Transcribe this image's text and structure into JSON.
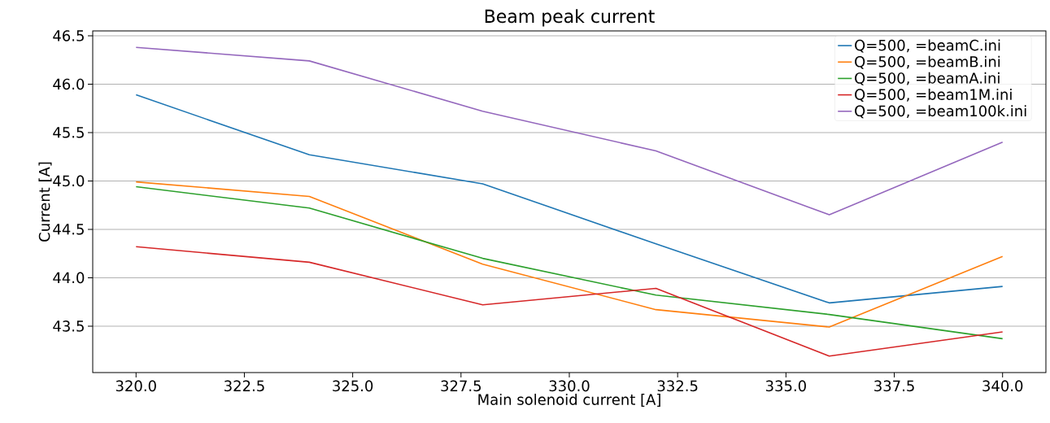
{
  "chart_data": {
    "type": "line",
    "title": "Beam peak current",
    "xlabel": "Main solenoid current [A]",
    "ylabel": "Current [A]",
    "x": [
      320,
      324,
      328,
      332,
      336,
      340
    ],
    "series": [
      {
        "name": "Q=500, =beamC.ini",
        "color": "#1f77b4",
        "values": [
          45.89,
          45.27,
          44.97,
          44.35,
          43.74,
          43.91
        ]
      },
      {
        "name": "Q=500, =beamB.ini",
        "color": "#ff7f0e",
        "values": [
          44.99,
          44.84,
          44.14,
          43.67,
          43.49,
          44.22
        ]
      },
      {
        "name": "Q=500, =beamA.ini",
        "color": "#2ca02c",
        "values": [
          44.94,
          44.72,
          44.2,
          43.82,
          43.62,
          43.37
        ]
      },
      {
        "name": "Q=500, =beam1M.ini",
        "color": "#d62728",
        "values": [
          44.32,
          44.16,
          43.72,
          43.89,
          43.19,
          43.44
        ]
      },
      {
        "name": "Q=500, =beam100k.ini",
        "color": "#9467bd",
        "values": [
          46.38,
          46.24,
          45.72,
          45.31,
          44.65,
          45.4
        ]
      }
    ],
    "xlim": [
      319,
      341
    ],
    "ylim": [
      43.02,
      46.55
    ],
    "xticks": [
      {
        "value": 320,
        "label": "320.0"
      },
      {
        "value": 322.5,
        "label": "322.5"
      },
      {
        "value": 325,
        "label": "325.0"
      },
      {
        "value": 327.5,
        "label": "327.5"
      },
      {
        "value": 330,
        "label": "330.0"
      },
      {
        "value": 332.5,
        "label": "332.5"
      },
      {
        "value": 335,
        "label": "335.0"
      },
      {
        "value": 337.5,
        "label": "337.5"
      },
      {
        "value": 340,
        "label": "340.0"
      }
    ],
    "yticks": [
      {
        "value": 43.5,
        "label": "43.5"
      },
      {
        "value": 44,
        "label": "44.0"
      },
      {
        "value": 44.5,
        "label": "44.5"
      },
      {
        "value": 45,
        "label": "45.0"
      },
      {
        "value": 45.5,
        "label": "45.5"
      },
      {
        "value": 46,
        "label": "46.0"
      },
      {
        "value": 46.5,
        "label": "46.5"
      }
    ],
    "grid": "y",
    "legend": "top right",
    "marker": "none",
    "line_style": "solid"
  }
}
